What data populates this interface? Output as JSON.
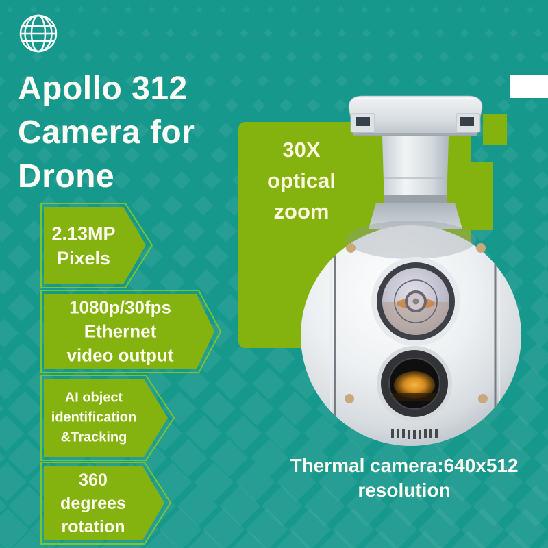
{
  "poster": {
    "title": "Apollo 312\nCamera for\nDrone",
    "highlight_label": "30X\noptical\nzoom",
    "features": [
      "2.13MP\nPixels",
      "1080p/30fps\nEthernet\nvideo output",
      "AI object\nidentification\n&Tracking",
      "360\ndegrees\nrotation"
    ],
    "footnote": "Thermal camera:640x512 resolution",
    "icons": {
      "logo": "globe-icon",
      "product": "drone-gimbal-camera-image"
    },
    "colors": {
      "background": "#17988C",
      "accent_green": "#84B30F",
      "accent_green_outline": "#7CC42C",
      "text_light": "#FCFBEE",
      "white": "#FFFFFF"
    }
  }
}
